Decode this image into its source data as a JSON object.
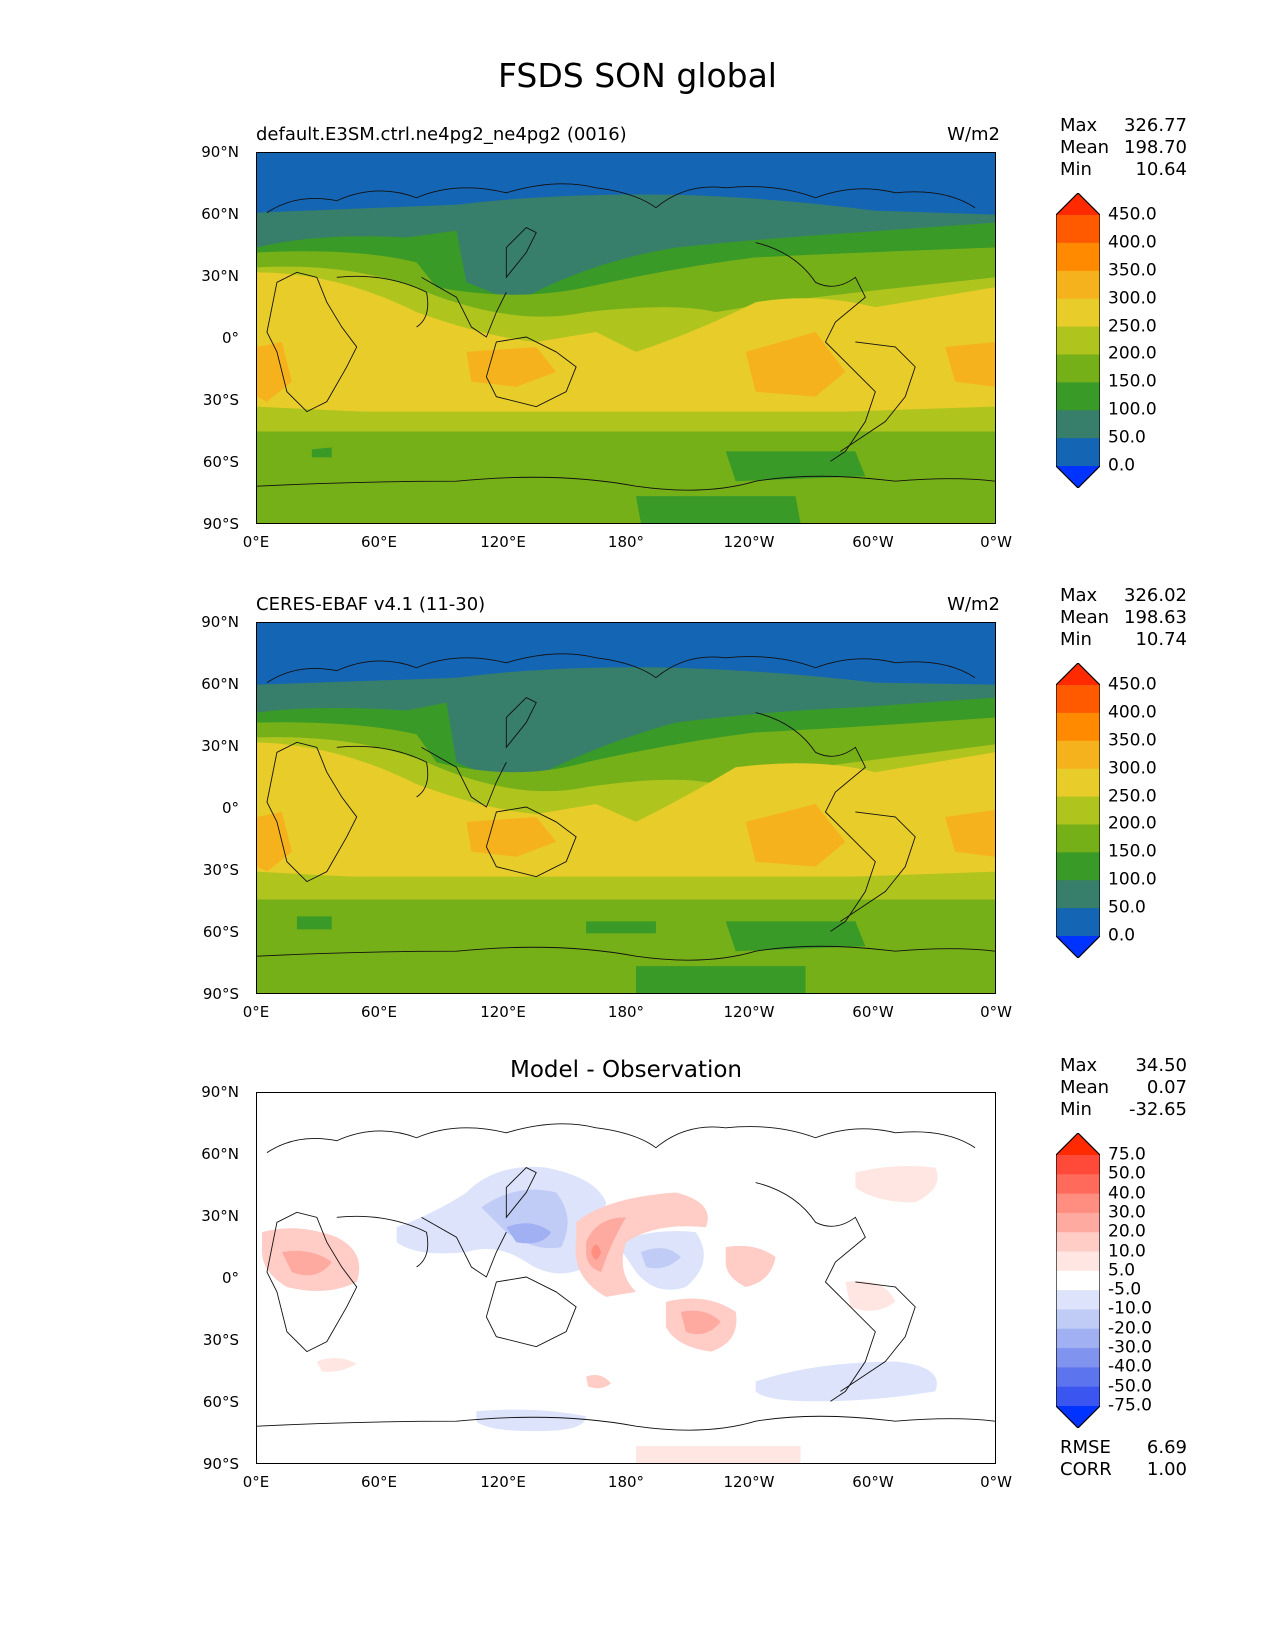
{
  "figure": {
    "title": "FSDS SON global"
  },
  "axes": {
    "lat_ticks": [
      "90°N",
      "60°N",
      "30°N",
      "0°",
      "30°S",
      "60°S",
      "90°S"
    ],
    "lon_ticks": [
      "0°E",
      "60°E",
      "120°E",
      "180°",
      "120°W",
      "60°W",
      "0°W"
    ]
  },
  "panels": {
    "model": {
      "title": "default.E3SM.ctrl.ne4pg2_ne4pg2 (0016)",
      "units": "W/m2",
      "stats": {
        "max_label": "Max",
        "max": "326.77",
        "mean_label": "Mean",
        "mean": "198.70",
        "min_label": "Min",
        "min": "10.64"
      },
      "colorbar": {
        "labels": [
          "450.0",
          "400.0",
          "350.0",
          "300.0",
          "250.0",
          "200.0",
          "150.0",
          "100.0",
          "50.0",
          "0.0"
        ],
        "colors": [
          "#ff2a00",
          "#ff5a00",
          "#ff8a00",
          "#f6b21c",
          "#e8cc2a",
          "#b0c41e",
          "#76b019",
          "#3a9a28",
          "#377f6a",
          "#1565b5",
          "#0033ff"
        ]
      }
    },
    "obs": {
      "title": "CERES-EBAF v4.1 (11-30)",
      "units": "W/m2",
      "stats": {
        "max_label": "Max",
        "max": "326.02",
        "mean_label": "Mean",
        "mean": "198.63",
        "min_label": "Min",
        "min": "10.74"
      },
      "colorbar": {
        "labels": [
          "450.0",
          "400.0",
          "350.0",
          "300.0",
          "250.0",
          "200.0",
          "150.0",
          "100.0",
          "50.0",
          "0.0"
        ],
        "colors": [
          "#ff2a00",
          "#ff5a00",
          "#ff8a00",
          "#f6b21c",
          "#e8cc2a",
          "#b0c41e",
          "#76b019",
          "#3a9a28",
          "#377f6a",
          "#1565b5",
          "#0033ff"
        ]
      }
    },
    "diff": {
      "title": "Model - Observation",
      "stats": {
        "max_label": "Max",
        "max": "34.50",
        "mean_label": "Mean",
        "mean": "0.07",
        "min_label": "Min",
        "min": "-32.65"
      },
      "colorbar": {
        "labels": [
          "75.0",
          "50.0",
          "40.0",
          "30.0",
          "20.0",
          "10.0",
          "5.0",
          "-5.0",
          "-10.0",
          "-20.0",
          "-30.0",
          "-40.0",
          "-50.0",
          "-75.0"
        ],
        "colors": [
          "#ff2a00",
          "#ff4a3a",
          "#ff6a5a",
          "#ff8e80",
          "#ffaaa0",
          "#ffccc6",
          "#ffe6e2",
          "#ffffff",
          "#dde3fb",
          "#c0cbf6",
          "#a0b0f2",
          "#8094ef",
          "#5c74ee",
          "#3a55f0",
          "#0033ff"
        ]
      },
      "rmse_label": "RMSE",
      "rmse": "6.69",
      "corr_label": "CORR",
      "corr": "1.00"
    }
  }
}
